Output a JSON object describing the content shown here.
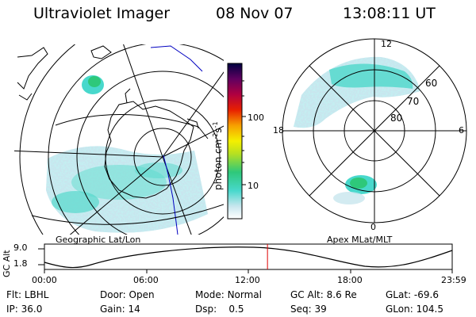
{
  "header": {
    "instrument": "Ultraviolet Imager",
    "date": "08 Nov 07",
    "time": "13:08:11 UT"
  },
  "geo_panel": {
    "label": "Geographic Lat/Lon"
  },
  "apex_panel": {
    "label": "Apex MLat/MLT",
    "lat_labels": [
      "60",
      "70",
      "80"
    ],
    "mlt_labels": [
      "12",
      "18",
      "6",
      "0"
    ]
  },
  "colorbar": {
    "unit_label": "photon cm",
    "unit_exp_a": "-2",
    "unit_mid": "s",
    "unit_exp_b": "-1",
    "ticks": [
      "100",
      "10"
    ]
  },
  "altitude_plot": {
    "axis_label": "GC Alt",
    "y_ticks": [
      "9.0",
      "1.8"
    ],
    "x_ticks": [
      "00:00",
      "06:00",
      "12:00",
      "18:00",
      "23:59"
    ],
    "current_time_fraction": 0.547
  },
  "info": {
    "row1": [
      {
        "label": "Flt:",
        "value": "LBHL"
      },
      {
        "label": "Door:",
        "value": "Open"
      },
      {
        "label": "Mode:",
        "value": "Normal"
      },
      {
        "label": "GC Alt:",
        "value": "8.6 Re"
      },
      {
        "label": "GLat:",
        "value": "-69.6"
      }
    ],
    "row2": [
      {
        "label": "IP:",
        "value": "36.0"
      },
      {
        "label": "Gain:",
        "value": "14"
      },
      {
        "label": "Dsp:",
        "value": "0.5"
      },
      {
        "label": "Seq:",
        "value": "39"
      },
      {
        "label": "GLon:",
        "value": "104.5"
      }
    ]
  },
  "colors": {
    "aurora_low": "#c8e6ee",
    "aurora_mid": "#48d8cc",
    "aurora_high": "#2ec87a",
    "marker": "#e00000",
    "track": "#0000c0"
  }
}
